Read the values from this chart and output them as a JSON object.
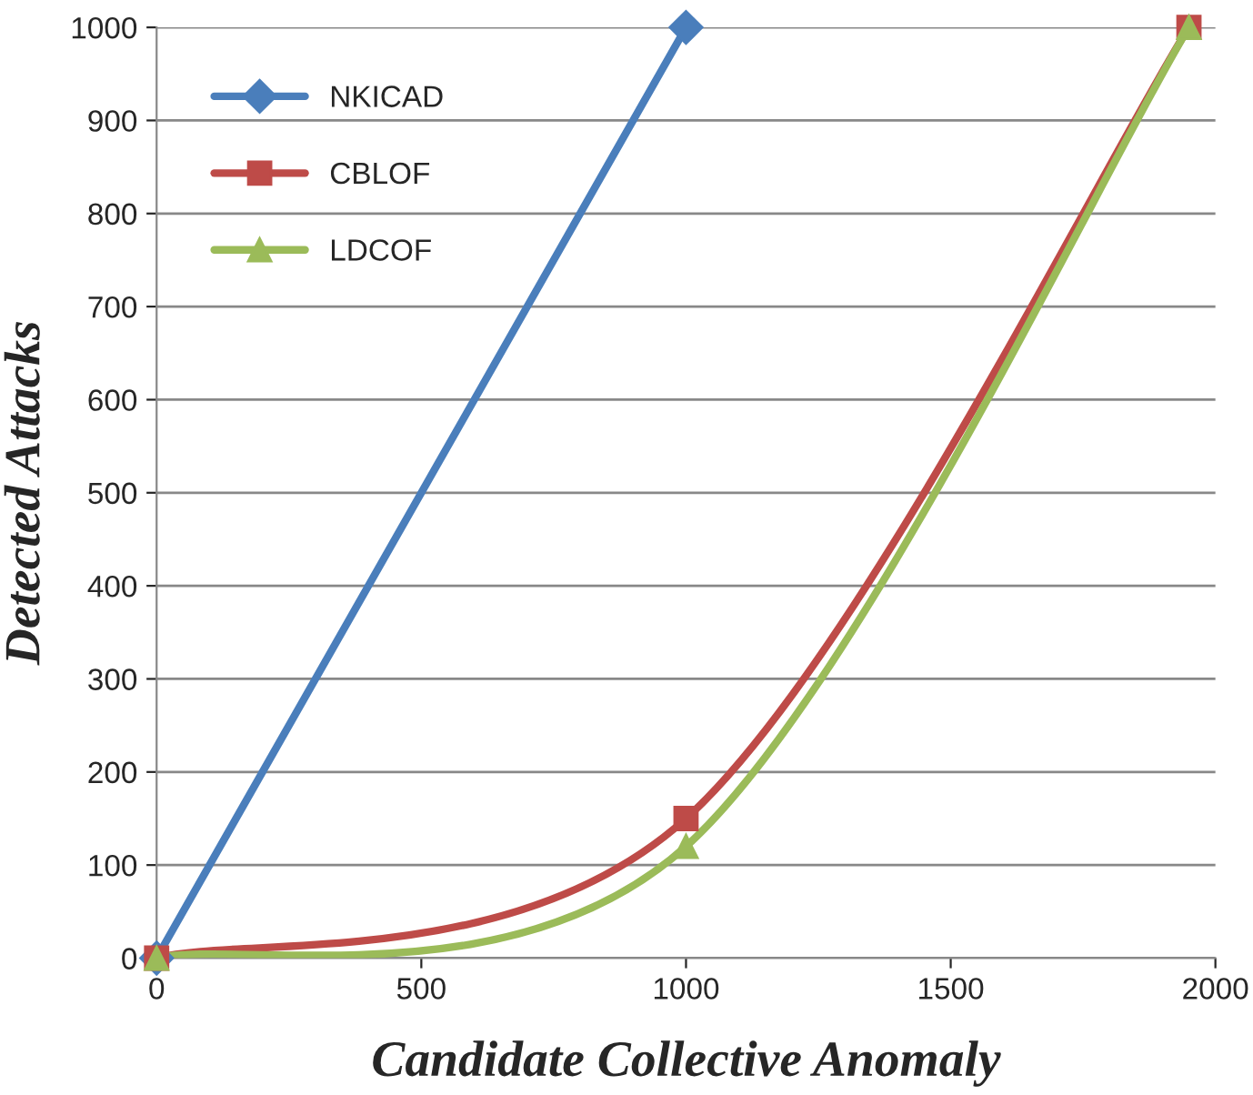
{
  "chart_data": {
    "type": "line",
    "xlabel": "Candidate Collective Anomaly",
    "ylabel": "Detected Attacks",
    "xlim": [
      0,
      2000
    ],
    "ylim": [
      0,
      1000
    ],
    "xticks": [
      0,
      500,
      1000,
      1500,
      2000
    ],
    "yticks": [
      0,
      100,
      200,
      300,
      400,
      500,
      600,
      700,
      800,
      900,
      1000
    ],
    "grid": "y",
    "legend": "top left",
    "line_style": "solid",
    "series": [
      {
        "name": "NKICAD",
        "color": "#4a7ebb",
        "marker": "diamond",
        "x": [
          0,
          1000
        ],
        "values": [
          0,
          1000
        ]
      },
      {
        "name": "CBLOF",
        "color": "#be4b48",
        "marker": "square",
        "x": [
          0,
          1000,
          1950
        ],
        "values": [
          0,
          150,
          1000
        ]
      },
      {
        "name": "LDCOF",
        "color": "#9bbb59",
        "marker": "triangle",
        "x": [
          0,
          1000,
          1950
        ],
        "values": [
          0,
          120,
          1000
        ]
      }
    ]
  }
}
